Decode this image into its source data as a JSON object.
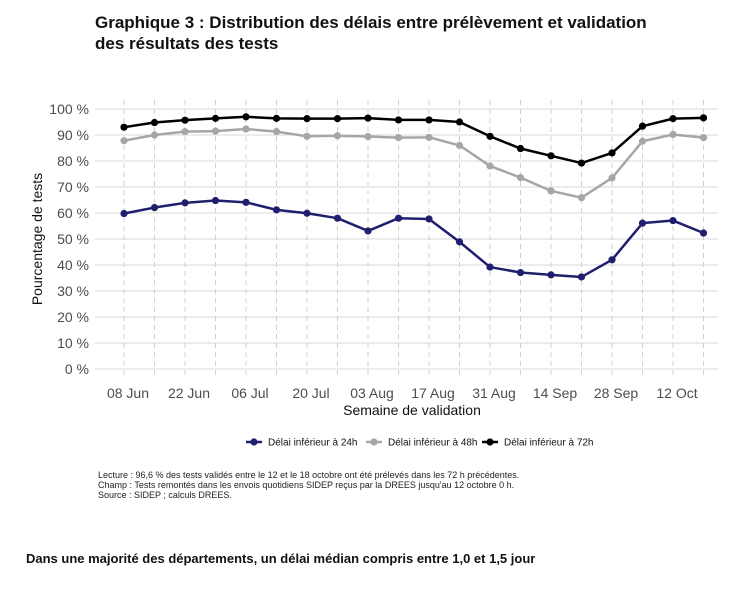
{
  "title_lines": [
    "Graphique 3 : Distribution des délais entre prélèvement et validation",
    "des résultats des tests"
  ],
  "notes": [
    "Lecture :  96,6 % des tests validés entre le 12 et le 18 octobre ont été prélevés dans les 72 h précédentes.",
    "Champ : Tests remontés dans les envois quotidiens SIDEP reçus par la DREES jusqu'au 12 octobre 0 h.",
    "Source : SIDEP ; calculs DREES."
  ],
  "caption": "Dans une majorité des départements, un délai médian compris entre 1,0 et 1,5 jour",
  "chart_data": {
    "type": "line",
    "xlabel": "Semaine de validation",
    "ylabel": "Pourcentage de tests",
    "ylim": [
      0,
      100
    ],
    "yticks": [
      "0 %",
      "10 %",
      "20 %",
      "30 %",
      "40 %",
      "50 %",
      "60 %",
      "70 %",
      "80 %",
      "90 %",
      "100 %"
    ],
    "xtick_labels": [
      "08 Jun",
      "22 Jun",
      "06 Jul",
      "20 Jul",
      "03 Aug",
      "17 Aug",
      "31 Aug",
      "14 Sep",
      "28 Sep",
      "12 Oct"
    ],
    "x_count": 20,
    "grid": true,
    "legend_position": "bottom",
    "series": [
      {
        "name": "Délai inférieur à 24h",
        "color": "#1f1f6e",
        "values": [
          59.8,
          62.1,
          63.9,
          64.8,
          64.1,
          61.2,
          59.9,
          58.0,
          53.1,
          58.0,
          57.7,
          48.9,
          39.2,
          37.1,
          36.2,
          35.4,
          42.0,
          56.1,
          57.1,
          52.3
        ]
      },
      {
        "name": "Délai inférieur à 48h",
        "color": "#a6a6a6",
        "values": [
          87.8,
          90.0,
          91.3,
          91.5,
          92.3,
          91.3,
          89.5,
          89.7,
          89.4,
          89.0,
          89.1,
          86.0,
          78.1,
          73.6,
          68.5,
          65.9,
          73.5,
          87.6,
          90.2,
          89.0
        ]
      },
      {
        "name": "Délai inférieur à 72h",
        "color": "#000000",
        "values": [
          93.0,
          94.8,
          95.7,
          96.4,
          97.0,
          96.4,
          96.3,
          96.3,
          96.5,
          95.8,
          95.8,
          95.0,
          89.5,
          84.8,
          82.0,
          79.2,
          83.1,
          93.4,
          96.3,
          96.6
        ]
      }
    ]
  }
}
